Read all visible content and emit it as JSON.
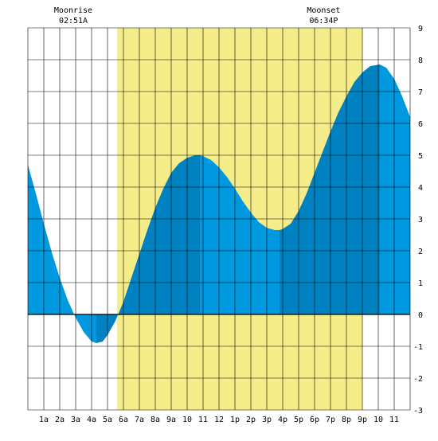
{
  "chart_data": {
    "type": "area",
    "title": "",
    "xlabel": "",
    "ylabel": "",
    "x_unit": "hours",
    "xlim": [
      0,
      24
    ],
    "ylim": [
      -3,
      9
    ],
    "y_ticks": [
      -3,
      -2,
      -1,
      0,
      1,
      2,
      3,
      4,
      5,
      6,
      7,
      8,
      9
    ],
    "x_tick_labels": [
      {
        "hour": 1,
        "label": "1a"
      },
      {
        "hour": 2,
        "label": "2a"
      },
      {
        "hour": 3,
        "label": "3a"
      },
      {
        "hour": 4,
        "label": "4a"
      },
      {
        "hour": 5,
        "label": "5a"
      },
      {
        "hour": 6,
        "label": "6a"
      },
      {
        "hour": 7,
        "label": "7a"
      },
      {
        "hour": 8,
        "label": "8a"
      },
      {
        "hour": 9,
        "label": "9a"
      },
      {
        "hour": 10,
        "label": "10"
      },
      {
        "hour": 11,
        "label": "11"
      },
      {
        "hour": 12,
        "label": "12"
      },
      {
        "hour": 13,
        "label": "1p"
      },
      {
        "hour": 14,
        "label": "2p"
      },
      {
        "hour": 15,
        "label": "3p"
      },
      {
        "hour": 16,
        "label": "4p"
      },
      {
        "hour": 17,
        "label": "5p"
      },
      {
        "hour": 18,
        "label": "6p"
      },
      {
        "hour": 19,
        "label": "7p"
      },
      {
        "hour": 20,
        "label": "8p"
      },
      {
        "hour": 21,
        "label": "9p"
      },
      {
        "hour": 22,
        "label": "10"
      },
      {
        "hour": 23,
        "label": "11"
      }
    ],
    "grid": true,
    "daylight": {
      "start_hour": 5.6,
      "end_hour": 21.0
    },
    "moonrise": {
      "label": "Moonrise",
      "time": "02:51A",
      "hour": 2.85
    },
    "moonset": {
      "label": "Moonset",
      "time": "06:34P",
      "hour": 18.57
    },
    "extremes": [
      {
        "hour": 4.3,
        "value": -0.9
      },
      {
        "hour": 10.8,
        "value": 5.0
      },
      {
        "hour": 15.8,
        "value": 2.65
      },
      {
        "hour": 22.1,
        "value": 7.85
      }
    ],
    "series": [
      {
        "values": [
          {
            "hour": 0.0,
            "value": 4.7
          },
          {
            "hour": 0.5,
            "value": 3.8
          },
          {
            "hour": 1.0,
            "value": 2.85
          },
          {
            "hour": 1.5,
            "value": 1.95
          },
          {
            "hour": 2.0,
            "value": 1.15
          },
          {
            "hour": 2.5,
            "value": 0.45
          },
          {
            "hour": 3.0,
            "value": -0.1
          },
          {
            "hour": 3.5,
            "value": -0.55
          },
          {
            "hour": 4.0,
            "value": -0.85
          },
          {
            "hour": 4.3,
            "value": -0.9
          },
          {
            "hour": 4.7,
            "value": -0.85
          },
          {
            "hour": 5.0,
            "value": -0.65
          },
          {
            "hour": 5.5,
            "value": -0.2
          },
          {
            "hour": 6.0,
            "value": 0.4
          },
          {
            "hour": 6.5,
            "value": 1.15
          },
          {
            "hour": 7.0,
            "value": 1.9
          },
          {
            "hour": 7.5,
            "value": 2.65
          },
          {
            "hour": 8.0,
            "value": 3.35
          },
          {
            "hour": 8.5,
            "value": 3.95
          },
          {
            "hour": 9.0,
            "value": 4.45
          },
          {
            "hour": 9.5,
            "value": 4.75
          },
          {
            "hour": 10.0,
            "value": 4.92
          },
          {
            "hour": 10.5,
            "value": 5.0
          },
          {
            "hour": 10.8,
            "value": 5.0
          },
          {
            "hour": 11.0,
            "value": 4.97
          },
          {
            "hour": 11.5,
            "value": 4.85
          },
          {
            "hour": 12.0,
            "value": 4.62
          },
          {
            "hour": 12.5,
            "value": 4.32
          },
          {
            "hour": 13.0,
            "value": 3.95
          },
          {
            "hour": 13.5,
            "value": 3.55
          },
          {
            "hour": 14.0,
            "value": 3.2
          },
          {
            "hour": 14.5,
            "value": 2.9
          },
          {
            "hour": 15.0,
            "value": 2.72
          },
          {
            "hour": 15.5,
            "value": 2.65
          },
          {
            "hour": 15.8,
            "value": 2.65
          },
          {
            "hour": 16.0,
            "value": 2.68
          },
          {
            "hour": 16.5,
            "value": 2.85
          },
          {
            "hour": 17.0,
            "value": 3.25
          },
          {
            "hour": 17.5,
            "value": 3.8
          },
          {
            "hour": 18.0,
            "value": 4.45
          },
          {
            "hour": 18.5,
            "value": 5.1
          },
          {
            "hour": 19.0,
            "value": 5.75
          },
          {
            "hour": 19.5,
            "value": 6.35
          },
          {
            "hour": 20.0,
            "value": 6.85
          },
          {
            "hour": 20.5,
            "value": 7.3
          },
          {
            "hour": 21.0,
            "value": 7.6
          },
          {
            "hour": 21.5,
            "value": 7.8
          },
          {
            "hour": 22.1,
            "value": 7.85
          },
          {
            "hour": 22.5,
            "value": 7.75
          },
          {
            "hour": 23.0,
            "value": 7.4
          },
          {
            "hour": 23.5,
            "value": 6.85
          },
          {
            "hour": 24.0,
            "value": 6.2
          }
        ]
      }
    ]
  },
  "colors": {
    "daylight": "#f5ec8a",
    "tide_light": "#0099e0",
    "tide_dark": "#0082c0",
    "grid": "#000000",
    "zero_line": "#000000",
    "text": "#000000"
  }
}
